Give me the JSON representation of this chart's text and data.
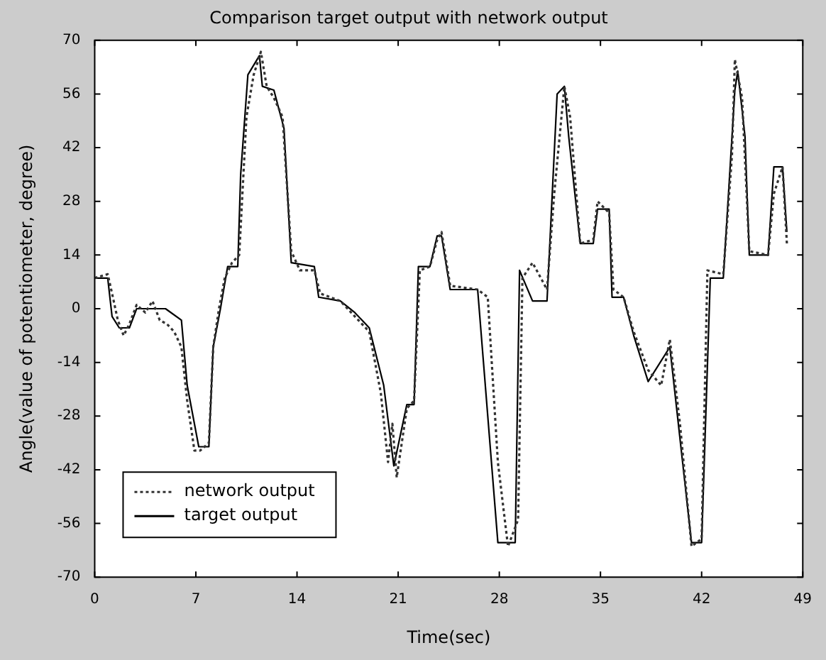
{
  "chart_data": {
    "type": "line",
    "title": "Comparison target output with network output",
    "xlabel": "Time(sec)",
    "ylabel": "Angle(value of potentiometer, degree)",
    "xlim": [
      0,
      49
    ],
    "xticks": [
      0,
      7,
      14,
      21,
      28,
      35,
      42,
      49
    ],
    "ylim": [
      -70,
      70
    ],
    "yticks": [
      -70,
      -56,
      -42,
      -28,
      -14,
      0,
      14,
      28,
      42,
      56,
      70
    ],
    "grid": false,
    "legend": "bottom left",
    "marker": "none",
    "series": [
      {
        "name": "network output",
        "color": "#333333",
        "line_style": "dotted",
        "x": [
          0,
          0.9,
          1.2,
          1.6,
          2.0,
          2.4,
          2.9,
          3.5,
          4.0,
          4.5,
          5.0,
          5.5,
          6.0,
          6.4,
          6.9,
          7.3,
          7.9,
          8.2,
          8.6,
          9.0,
          9.5,
          10.0,
          10.5,
          11.0,
          11.5,
          11.9,
          12.4,
          13.0,
          13.6,
          14.2,
          15.2,
          15.6,
          17.0,
          18.0,
          19.0,
          19.8,
          20.3,
          20.6,
          20.9,
          21.6,
          22.1,
          22.5,
          23.2,
          23.7,
          24.0,
          24.6,
          26.5,
          27.2,
          27.9,
          28.6,
          29.3,
          29.6,
          30.3,
          31.3,
          31.8,
          32.5,
          32.9,
          33.6,
          34.5,
          34.8,
          35.6,
          35.9,
          36.6,
          37.3,
          38.3,
          39.2,
          39.8,
          40.5,
          41.3,
          42.0,
          42.4,
          43.5,
          44.1,
          44.3,
          44.8,
          45.3,
          46.6,
          47.0,
          47.6,
          47.9
        ],
        "values": [
          8,
          9,
          4,
          -3,
          -7,
          -4,
          1,
          -1,
          2,
          -3,
          -4,
          -6,
          -10,
          -24,
          -37,
          -37,
          -35,
          -10,
          0,
          8,
          12,
          14,
          50,
          61,
          67,
          58,
          55,
          50,
          15,
          10,
          10,
          4,
          2,
          -2,
          -6,
          -22,
          -40,
          -30,
          -44,
          -26,
          -24,
          10,
          11,
          18,
          20,
          6,
          5,
          3,
          -40,
          -62,
          -55,
          8,
          12,
          5,
          30,
          58,
          50,
          17,
          18,
          28,
          25,
          5,
          3,
          -6,
          -16,
          -20,
          -8,
          -30,
          -62,
          -60,
          10,
          9,
          40,
          65,
          55,
          15,
          14,
          30,
          37,
          17
        ]
      },
      {
        "name": "target output",
        "color": "#000000",
        "line_style": "solid",
        "x": [
          0,
          0.9,
          1.2,
          1.7,
          2.4,
          2.9,
          4.9,
          6.0,
          6.4,
          7.2,
          7.9,
          8.2,
          8.7,
          9.2,
          9.9,
          10.1,
          10.6,
          11.4,
          11.6,
          12.4,
          13.1,
          13.6,
          15.2,
          15.5,
          17.0,
          18.0,
          19.0,
          20.0,
          20.7,
          21.6,
          22.1,
          22.4,
          23.2,
          23.7,
          24.0,
          24.6,
          26.5,
          27.9,
          29.1,
          29.4,
          30.3,
          31.3,
          32.0,
          32.5,
          32.8,
          33.6,
          34.5,
          34.8,
          35.6,
          35.8,
          36.6,
          37.3,
          38.3,
          39.8,
          41.3,
          42.0,
          42.6,
          43.5,
          44.3,
          44.5,
          45.0,
          45.3,
          46.6,
          47.0,
          47.6,
          47.9
        ],
        "values": [
          8,
          8,
          -2,
          -5,
          -5,
          0,
          0,
          -3,
          -20,
          -36,
          -36,
          -10,
          0,
          11,
          11,
          35,
          61,
          66,
          58,
          57,
          47,
          12,
          11,
          3,
          2,
          -1,
          -5,
          -20,
          -41,
          -25,
          -25,
          11,
          11,
          19,
          19,
          5,
          5,
          -61,
          -61,
          10,
          2,
          2,
          56,
          58,
          45,
          17,
          17,
          26,
          26,
          3,
          3,
          -7,
          -19,
          -10,
          -61,
          -61,
          8,
          8,
          57,
          62,
          45,
          14,
          14,
          37,
          37,
          20
        ]
      }
    ]
  }
}
